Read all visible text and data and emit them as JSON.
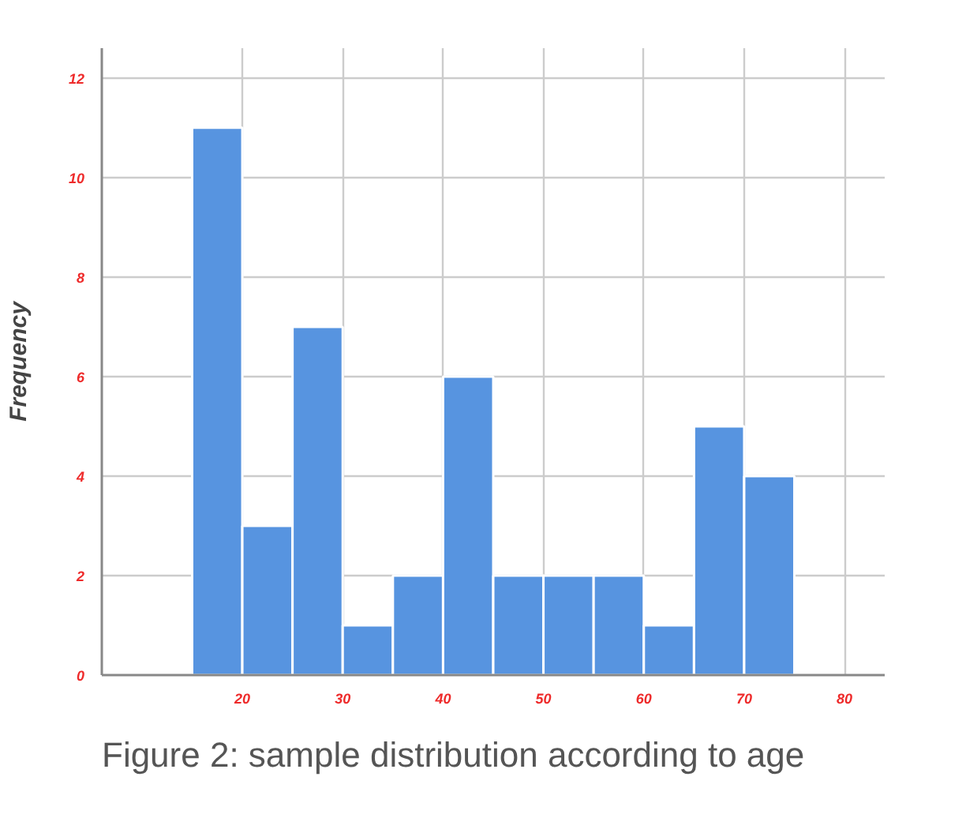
{
  "chart_data": {
    "type": "histogram",
    "ylabel": "Frequency",
    "bins": [
      15,
      20,
      25,
      30,
      35,
      40,
      45,
      50,
      55,
      60,
      65,
      70,
      75
    ],
    "values": [
      11,
      3,
      7,
      1,
      2,
      6,
      2,
      2,
      2,
      1,
      5,
      4
    ],
    "color": "#5794e0",
    "xlim": [
      6,
      84
    ],
    "xticks": [
      20,
      30,
      40,
      50,
      60,
      70,
      80
    ],
    "ylim": [
      0,
      12.6
    ],
    "yticks": [
      0,
      2,
      4,
      6,
      8,
      10,
      12
    ],
    "grid": true,
    "annotations": [
      "Figure 2: sample distribution according to age"
    ]
  }
}
